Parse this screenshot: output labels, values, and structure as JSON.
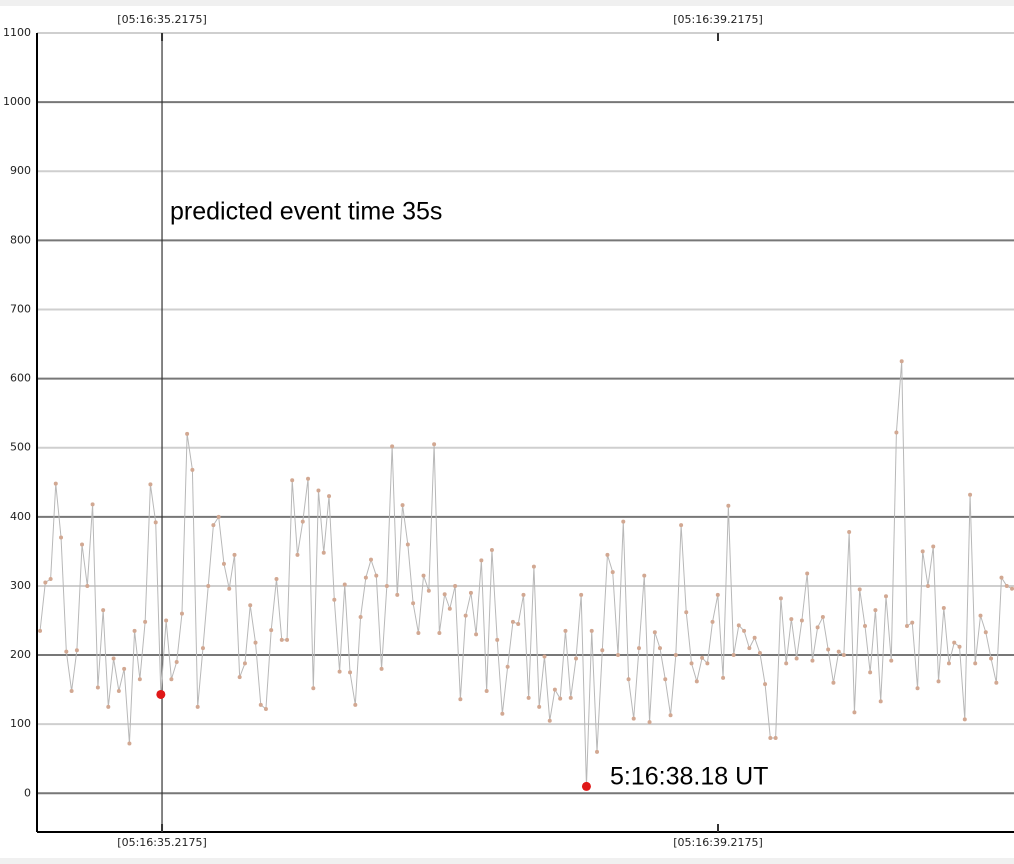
{
  "chart_data": {
    "type": "line",
    "annotations": [
      "predicted event time 35s",
      "5:16:38.18 UT"
    ],
    "x": [
      34.34,
      34.378,
      34.416,
      34.453,
      34.491,
      34.529,
      34.567,
      34.605,
      34.642,
      34.68,
      34.718,
      34.756,
      34.794,
      34.831,
      34.869,
      34.907,
      34.945,
      34.983,
      35.02,
      35.058,
      35.096,
      35.134,
      35.172,
      35.209,
      35.247,
      35.285,
      35.323,
      35.361,
      35.398,
      35.436,
      35.474,
      35.512,
      35.55,
      35.587,
      35.625,
      35.663,
      35.701,
      35.739,
      35.776,
      35.814,
      35.852,
      35.89,
      35.928,
      35.965,
      36.003,
      36.041,
      36.079,
      36.117,
      36.154,
      36.192,
      36.23,
      36.268,
      36.306,
      36.343,
      36.381,
      36.419,
      36.457,
      36.495,
      36.532,
      36.57,
      36.608,
      36.646,
      36.684,
      36.721,
      36.759,
      36.797,
      36.835,
      36.873,
      36.91,
      36.948,
      36.986,
      37.024,
      37.062,
      37.099,
      37.137,
      37.175,
      37.213,
      37.251,
      37.288,
      37.326,
      37.364,
      37.402,
      37.44,
      37.477,
      37.515,
      37.553,
      37.591,
      37.629,
      37.666,
      37.704,
      37.742,
      37.78,
      37.818,
      37.855,
      37.893,
      37.931,
      37.969,
      38.007,
      38.044,
      38.082,
      38.12,
      38.158,
      38.196,
      38.233,
      38.271,
      38.309,
      38.347,
      38.385,
      38.422,
      38.46,
      38.498,
      38.536,
      38.574,
      38.611,
      38.649,
      38.687,
      38.725,
      38.763,
      38.8,
      38.838,
      38.876,
      38.914,
      38.952,
      38.989,
      39.027,
      39.065,
      39.103,
      39.141,
      39.178,
      39.216,
      39.254,
      39.292,
      39.33,
      39.367,
      39.405,
      39.443,
      39.481,
      39.519,
      39.556,
      39.594,
      39.632,
      39.67,
      39.708,
      39.745,
      39.783,
      39.821,
      39.859,
      39.897,
      39.934,
      39.972,
      40.01,
      40.048,
      40.086,
      40.123,
      40.161,
      40.199,
      40.237,
      40.275,
      40.312,
      40.35,
      40.388,
      40.426,
      40.464,
      40.501,
      40.539,
      40.577,
      40.615,
      40.653,
      40.69,
      40.728,
      40.766,
      40.804,
      40.842,
      40.879,
      40.917,
      40.955,
      40.993,
      41.031,
      41.068,
      41.106,
      41.144,
      41.182,
      41.22,
      41.257,
      41.295,
      41.333
    ],
    "series": [
      {
        "color": "#b8b8b8",
        "marker_color": "#d2a892",
        "values": [
          235,
          305,
          310,
          448,
          370,
          205,
          148,
          207,
          360,
          300,
          418,
          153,
          265,
          125,
          195,
          148,
          180,
          72,
          235,
          165,
          248,
          447,
          392,
          143,
          250,
          165,
          190,
          260,
          520,
          468,
          125,
          210,
          300,
          388,
          400,
          332,
          296,
          345,
          168,
          188,
          272,
          218,
          128,
          122,
          236,
          310,
          222,
          222,
          453,
          345,
          393,
          455,
          152,
          438,
          348,
          430,
          280,
          176,
          302,
          175,
          128,
          255,
          312,
          338,
          315,
          180,
          300,
          502,
          287,
          417,
          360,
          275,
          232,
          315,
          293,
          505,
          232,
          288,
          267,
          300,
          136,
          257,
          290,
          230,
          337,
          148,
          352,
          222,
          115,
          183,
          248,
          245,
          287,
          138,
          328,
          125,
          198,
          105,
          150,
          137,
          235,
          138,
          195,
          287,
          10,
          235,
          60,
          207,
          345,
          320,
          200,
          393,
          165,
          108,
          210,
          315,
          103,
          233,
          210,
          165,
          113,
          200,
          388,
          262,
          188,
          162,
          196,
          188,
          248,
          287,
          167,
          416,
          200,
          243,
          235,
          210,
          225,
          203,
          158,
          80,
          80,
          282,
          188,
          252,
          195,
          250,
          318,
          192,
          240,
          255,
          208,
          160,
          205,
          200,
          378,
          117,
          295,
          242,
          175,
          265,
          133,
          285,
          192,
          522,
          625,
          242,
          247,
          152,
          350,
          300,
          357,
          162,
          268,
          188,
          218,
          212,
          107,
          432,
          188,
          257,
          233,
          195,
          160,
          312,
          300,
          296
        ]
      }
    ],
    "markers": {
      "color": "#e01818",
      "x": [
        35.209,
        38.271
      ],
      "values": [
        143,
        10
      ]
    },
    "vline": 35.2175,
    "xlim": [
      34.318,
      41.347
    ],
    "xticks": [
      {
        "value": 35.2175,
        "label": "[05:16:35.2175]"
      },
      {
        "value": 39.2175,
        "label": "[05:16:39.2175]"
      }
    ],
    "ylim": [
      -56,
      1100
    ],
    "yticks": [
      0,
      100,
      200,
      300,
      400,
      500,
      600,
      700,
      800,
      900,
      1000,
      1100
    ],
    "grid": true
  }
}
